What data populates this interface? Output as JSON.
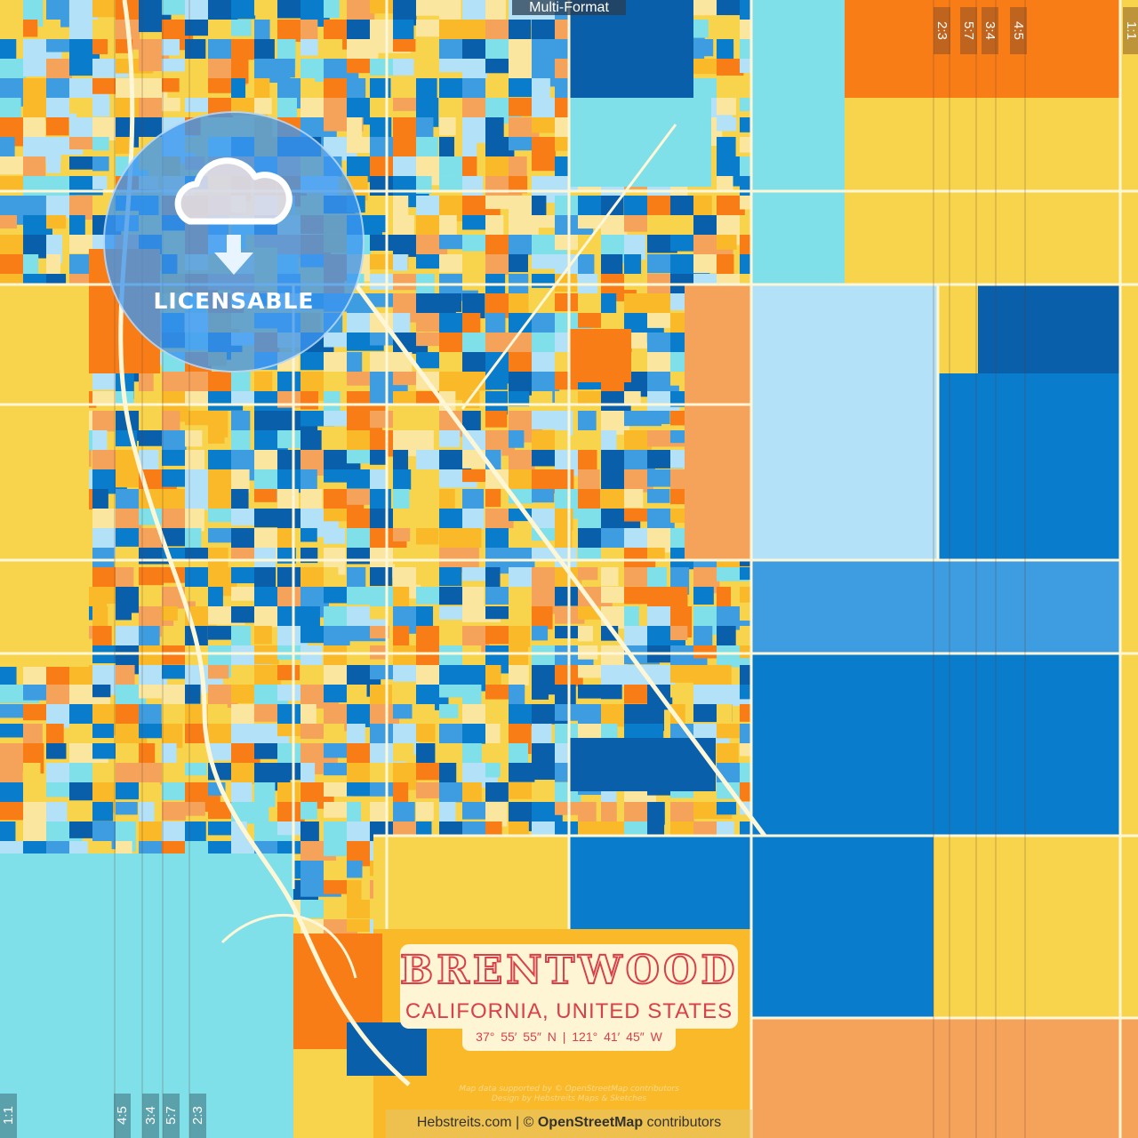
{
  "overlay": {
    "format_label": "Multi-Format",
    "ratio_labels_top": [
      "2:3",
      "5:7",
      "3:4",
      "4:5",
      "1:1"
    ],
    "ratio_labels_bottom": [
      "1:1",
      "4:5",
      "3:4",
      "5:7",
      "2:3"
    ]
  },
  "badge": {
    "icon": "cloud-download-icon",
    "label": "LICENSABLE"
  },
  "title_card": {
    "city": "BRENTWOOD",
    "region": "CALIFORNIA, UNITED STATES",
    "coordinates": "37°  55′  55″ N  |  121°  41′  45″ W"
  },
  "credits": {
    "faint_line_1": "Map data supported by © OpenStreetMap contributors",
    "faint_line_2": "Design by Hebstreits Maps & Sketches",
    "site": "Hebstreits.com",
    "separator": " | © ",
    "osm": "OpenStreetMap",
    "suffix": " contributors"
  },
  "colors": {
    "orange": "#f97d17",
    "light_orange": "#f5a25a",
    "yellow": "#f8d44c",
    "gold": "#f9b928",
    "cream": "#fbe6a0",
    "cyan": "#7fe0ea",
    "light_blue": "#b3e1f7",
    "sky": "#3d9de0",
    "blue": "#0a7ccc",
    "dark_blue": "#0a5fab",
    "road": "#fdf7d8",
    "title_red": "#d9404a"
  }
}
